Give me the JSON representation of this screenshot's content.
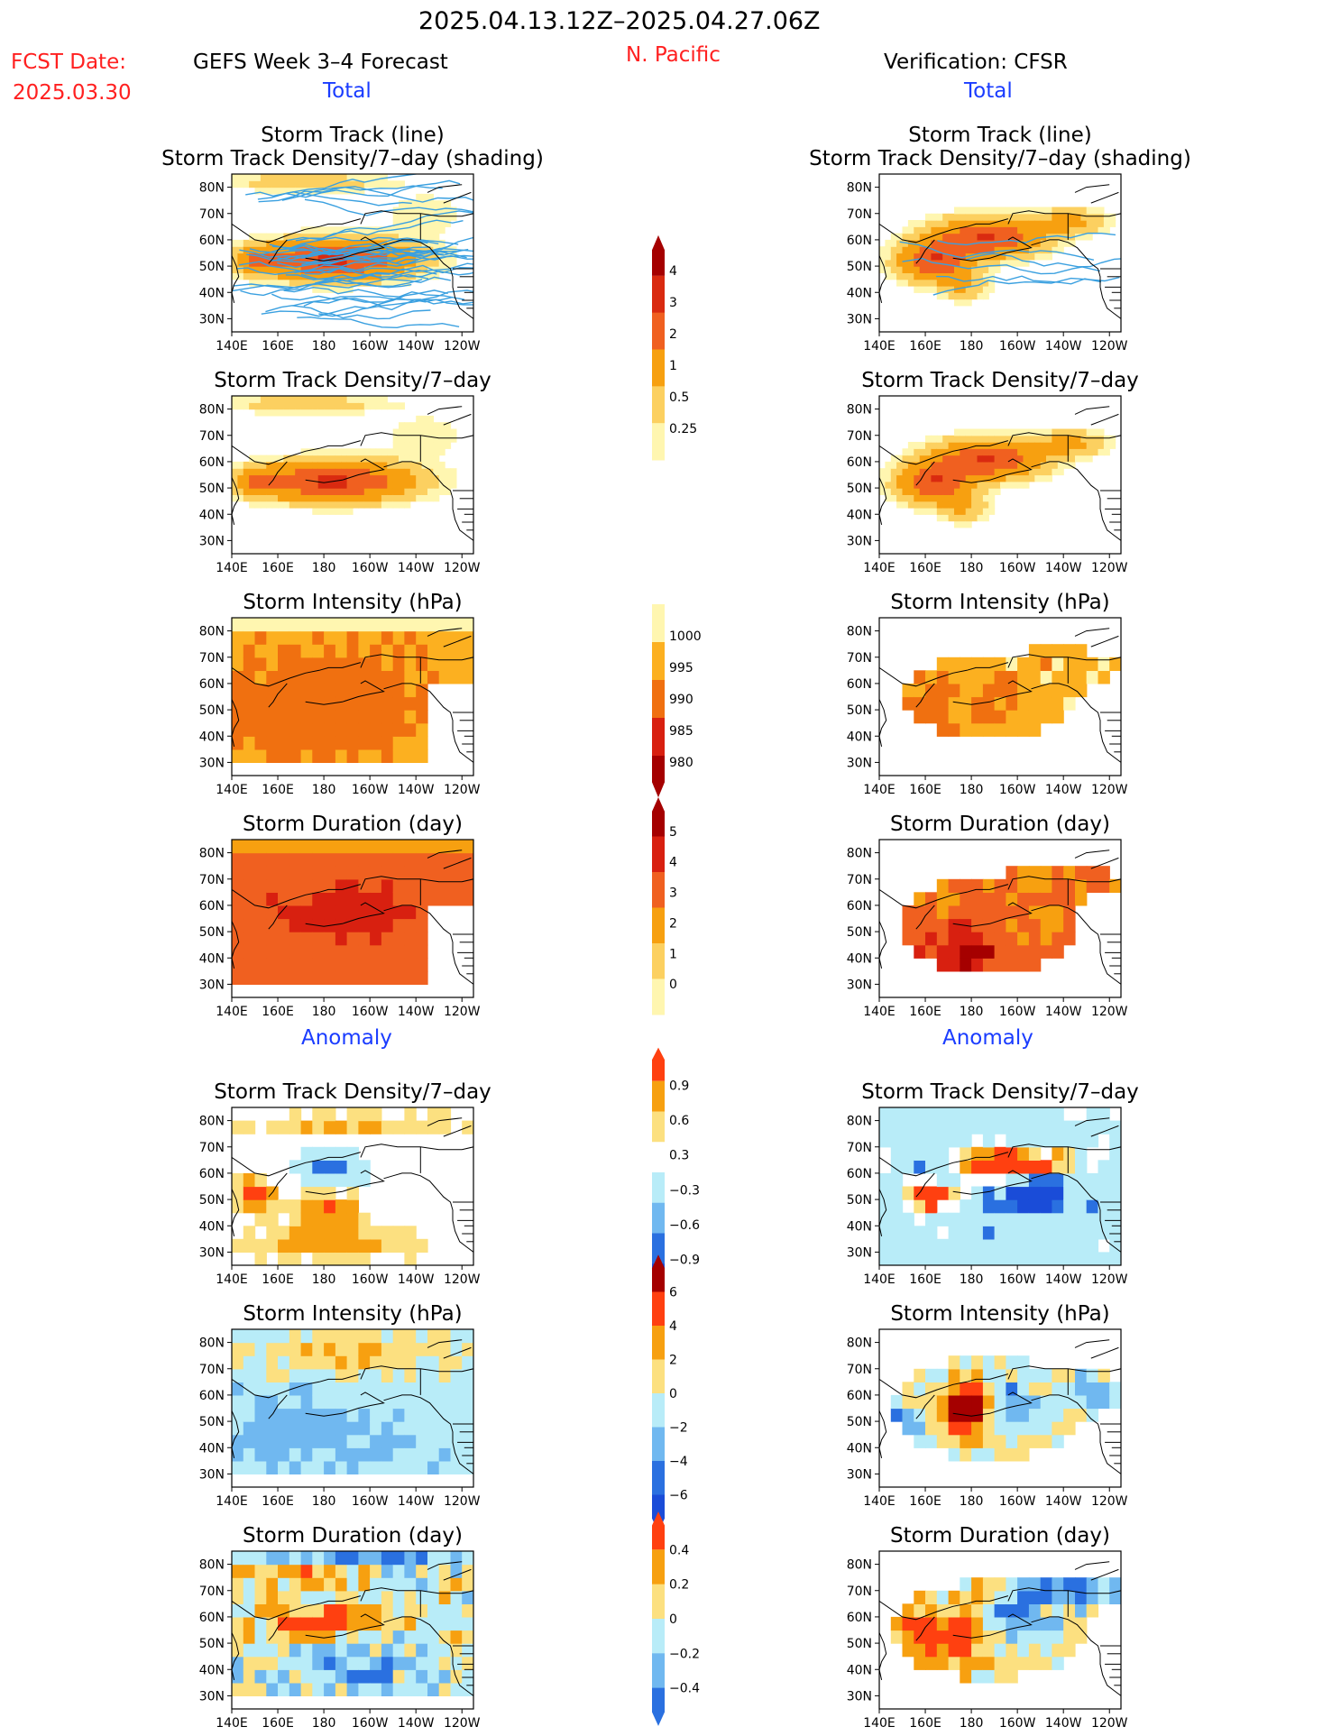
{
  "header": {
    "date_range": "2025.04.13.12Z–2025.04.27.06Z",
    "fcst_label": "FCST Date:",
    "fcst_date": "2025.03.30",
    "model": "GEFS Week 3–4 Forecast",
    "region": "N. Pacific",
    "verification": "Verification: CFSR",
    "total_left": "Total",
    "total_right": "Total",
    "anomaly_left": "Anomaly",
    "anomaly_right": "Anomaly"
  },
  "colors": {
    "title_red": "#ff2020",
    "blue_label": "#1a3cff",
    "track_line": "#3aa0e0"
  },
  "chart_data": {
    "type": "heatmap",
    "axes": {
      "x_ticks": [
        "140E",
        "160E",
        "180",
        "160W",
        "140W",
        "120W"
      ],
      "y_ticks": [
        "80N",
        "70N",
        "60N",
        "50N",
        "40N",
        "30N"
      ],
      "lon_range": [
        140,
        245
      ],
      "lat_range": [
        25,
        85
      ]
    },
    "rows": [
      {
        "left_title": [
          "Storm Track (line)",
          "Storm Track Density/7–day (shading)"
        ],
        "right_title": [
          "Storm Track (line)",
          "Storm Track Density/7–day (shading)"
        ],
        "field": "density",
        "tracks": true
      },
      {
        "left_title": [
          "Storm Track Density/7–day"
        ],
        "right_title": [
          "Storm Track Density/7–day"
        ],
        "field": "density",
        "tracks": false
      },
      {
        "left_title": [
          "Storm Intensity (hPa)"
        ],
        "right_title": [
          "Storm Intensity (hPa)"
        ],
        "field": "intensity",
        "tracks": false
      },
      {
        "left_title": [
          "Storm Duration (day)"
        ],
        "right_title": [
          "Storm Duration (day)"
        ],
        "field": "duration",
        "tracks": false
      },
      {
        "left_title": [
          "Storm Track Density/7–day"
        ],
        "right_title": [
          "Storm Track Density/7–day"
        ],
        "field": "anom_density",
        "tracks": false
      },
      {
        "left_title": [
          "Storm Intensity (hPa)"
        ],
        "right_title": [
          "Storm Intensity (hPa)"
        ],
        "field": "anom_intensity",
        "tracks": false
      },
      {
        "left_title": [
          "Storm Duration (day)"
        ],
        "right_title": [
          "Storm Duration (day)"
        ],
        "field": "anom_duration",
        "tracks": false
      }
    ],
    "colorbars": [
      {
        "name": "density",
        "labels": [
          "4",
          "3",
          "2",
          "1",
          "0.5",
          "0.25"
        ],
        "colors": [
          "#a50000",
          "#d92a10",
          "#f06020",
          "#f7a010",
          "#fcd060",
          "#fff6b0"
        ]
      },
      {
        "name": "intensity",
        "labels": [
          "1000",
          "995",
          "990",
          "985",
          "980"
        ],
        "colors": [
          "#fff6b0",
          "#fcb020",
          "#f07010",
          "#d82010",
          "#a50000"
        ]
      },
      {
        "name": "duration",
        "labels": [
          "5",
          "4",
          "3",
          "2",
          "1",
          "0"
        ],
        "colors": [
          "#a50000",
          "#d82010",
          "#f06020",
          "#f7a010",
          "#fcd060",
          "#fff6b0"
        ]
      },
      {
        "name": "anom_density",
        "labels": [
          "0.9",
          "0.6",
          "0.3",
          "−0.3",
          "−0.6",
          "−0.9"
        ],
        "colors": [
          "#ff4010",
          "#f7a010",
          "#fce080",
          "#ffffff",
          "#b8ecf8",
          "#70b8f0",
          "#2a70e0",
          "#1a4cd8"
        ]
      },
      {
        "name": "anom_intensity",
        "labels": [
          "6",
          "4",
          "2",
          "0",
          "−2",
          "−4",
          "−6"
        ],
        "colors": [
          "#a50000",
          "#ff4010",
          "#f7a010",
          "#fce080",
          "#b8ecf8",
          "#70b8f0",
          "#2a70e0",
          "#1a4cd8"
        ]
      },
      {
        "name": "anom_duration",
        "labels": [
          "0.4",
          "0.2",
          "0",
          "−0.2",
          "−0.4"
        ],
        "colors": [
          "#ff4010",
          "#f7a010",
          "#fce080",
          "#b8ecf8",
          "#70b8f0",
          "#2a70e0"
        ]
      }
    ]
  }
}
